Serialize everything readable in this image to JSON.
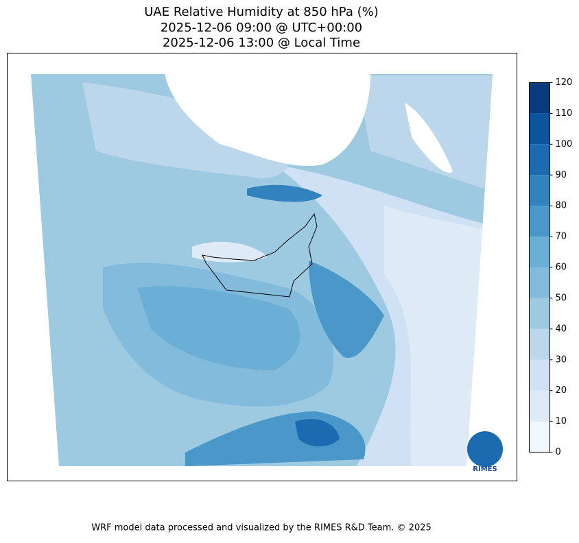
{
  "title": [
    "UAE Relative Humidity at 850 hPa (%)",
    "2025-12-06 09:00 @ UTC+00:00",
    "2025-12-06 13:00 @ Local Time"
  ],
  "colorbar": {
    "lim": [
      0,
      120
    ],
    "ticks": [
      0,
      10,
      20,
      30,
      40,
      50,
      60,
      70,
      80,
      90,
      100,
      110,
      120
    ],
    "colors": [
      "#eff6fc",
      "#deebf7",
      "#cfe1f2",
      "#bcd7eb",
      "#9ecae1",
      "#82bbdb",
      "#6baed6",
      "#4a98c9",
      "#3282be",
      "#1c6aaf",
      "#0b559f",
      "#083b7c"
    ]
  },
  "logo": "RIMES",
  "footer": "WRF model data processed and visualized by the RIMES R&D Team. © 2025"
}
